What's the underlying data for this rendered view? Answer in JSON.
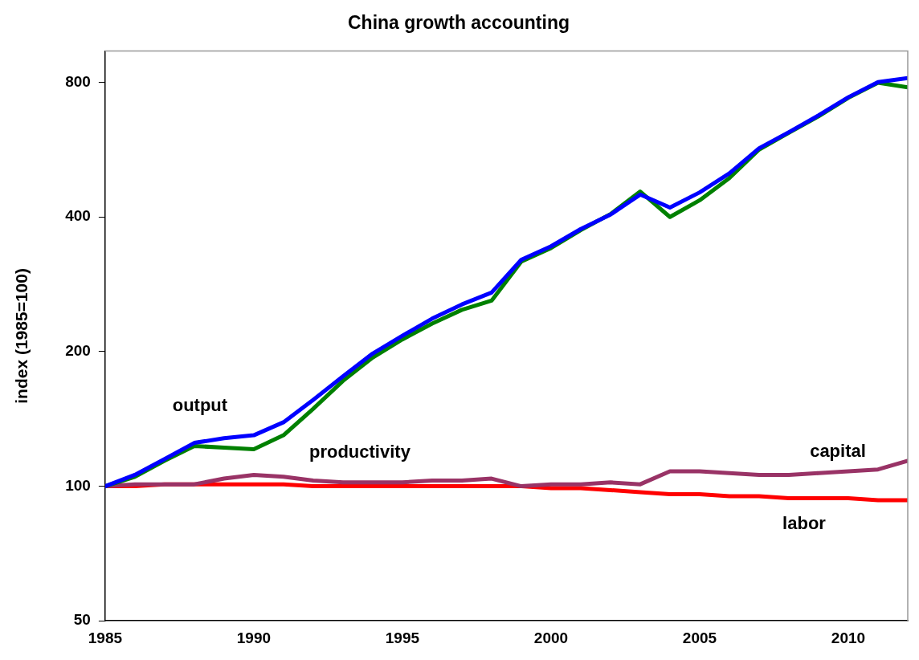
{
  "chart_data": {
    "type": "line",
    "title": "China growth accounting",
    "ylabel": "index (1985=100)",
    "x": [
      1985,
      1986,
      1987,
      1988,
      1989,
      1990,
      1991,
      1992,
      1993,
      1994,
      1995,
      1996,
      1997,
      1998,
      1999,
      2000,
      2001,
      2002,
      2003,
      2004,
      2005,
      2006,
      2007,
      2008,
      2009,
      2010,
      2011,
      2012
    ],
    "series": [
      {
        "name": "output",
        "color": "#0000ff",
        "values": [
          100,
          106,
          115,
          125,
          128,
          130,
          139,
          156,
          176,
          198,
          217,
          237,
          255,
          271,
          321,
          344,
          376,
          405,
          449,
          420,
          454,
          501,
          570,
          619,
          675,
          741,
          801,
          818
        ]
      },
      {
        "name": "productivity",
        "color": "#008000",
        "values": [
          100,
          105,
          114,
          123,
          122,
          121,
          130,
          149,
          172,
          194,
          213,
          231,
          248,
          260,
          318,
          341,
          374,
          406,
          456,
          400,
          436,
          489,
          566,
          617,
          672,
          739,
          799,
          780
        ]
      },
      {
        "name": "capital",
        "color": "#993366",
        "values": [
          100,
          101,
          101,
          101,
          104,
          106,
          105,
          103,
          102,
          102,
          102,
          103,
          103,
          104,
          100,
          101,
          101,
          102,
          101,
          108,
          108,
          107,
          106,
          106,
          107,
          108,
          109,
          114
        ]
      },
      {
        "name": "labor",
        "color": "#ff0000",
        "values": [
          100,
          100,
          101,
          101,
          101,
          101,
          101,
          100,
          100,
          100,
          100,
          100,
          100,
          100,
          100,
          99,
          99,
          98,
          97,
          96,
          96,
          95,
          95,
          94,
          94,
          94,
          93,
          93
        ]
      }
    ],
    "xlim": [
      1985,
      2012
    ],
    "xticks": [
      1985,
      1990,
      1995,
      2000,
      2005,
      2010
    ],
    "log": "y",
    "ylim": [
      50,
      940
    ],
    "yticks": [
      50,
      100,
      200,
      400,
      800
    ],
    "grid": false,
    "legend": false,
    "marker": "none",
    "line_style": "solid"
  }
}
